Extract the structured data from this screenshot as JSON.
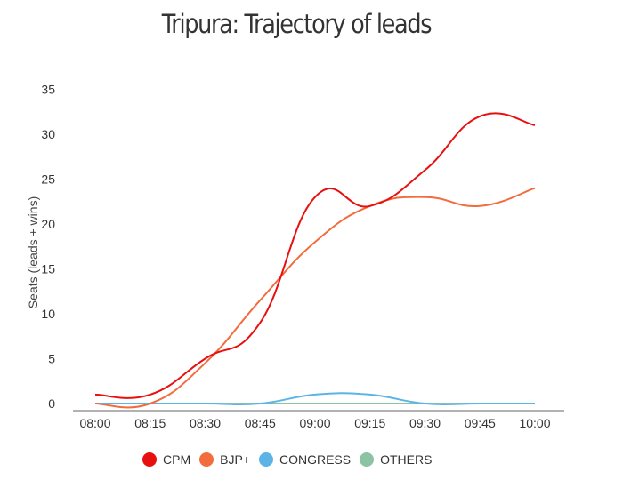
{
  "chart_data": {
    "type": "line",
    "title": "Tripura: Trajectory of leads",
    "xlabel": "",
    "ylabel": "Seats (leads + wins)",
    "categories": [
      "08:00",
      "08:15",
      "08:30",
      "08:45",
      "09:00",
      "09:15",
      "09:30",
      "09:45",
      "10:00"
    ],
    "y_ticks": [
      "0",
      "5",
      "10",
      "15",
      "20",
      "25",
      "30",
      "35"
    ],
    "ylim": [
      0,
      35
    ],
    "grid": false,
    "legend_position": "bottom",
    "series": [
      {
        "name": "CPM",
        "color": "#e8100f",
        "values": [
          1,
          1,
          5,
          9,
          23,
          22,
          26,
          32,
          31
        ]
      },
      {
        "name": "BJP+",
        "color": "#f26c3e",
        "values": [
          0,
          0,
          4.5,
          11.5,
          18,
          22,
          23,
          22,
          24
        ]
      },
      {
        "name": "CONGRESS",
        "color": "#5bb4e5",
        "values": [
          0,
          0,
          0,
          0,
          1,
          1,
          0,
          0,
          0
        ]
      },
      {
        "name": "OTHERS",
        "color": "#8cc3a3",
        "values": [
          0,
          0,
          0,
          0,
          0,
          0,
          0,
          0,
          0
        ]
      }
    ]
  }
}
